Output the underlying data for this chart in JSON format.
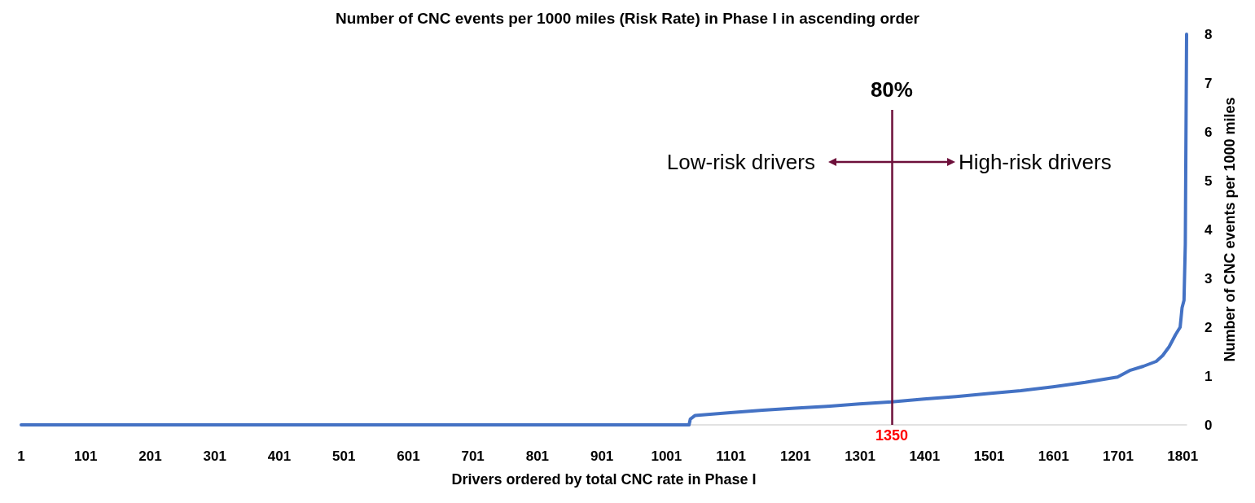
{
  "chart_data": {
    "type": "line",
    "title": "Number of CNC events per 1000 miles (Risk Rate) in Phase I in ascending order",
    "xlabel": "Drivers ordered by total CNC rate in Phase I",
    "ylabel": "Number of CNC events per 1000 miles",
    "x": [
      1,
      1036,
      1038,
      1045,
      1100,
      1150,
      1200,
      1250,
      1300,
      1350,
      1400,
      1450,
      1500,
      1550,
      1600,
      1650,
      1700,
      1720,
      1740,
      1760,
      1770,
      1780,
      1790,
      1797,
      1800,
      1803,
      1805,
      1807
    ],
    "series": [
      {
        "color": "#4472c4",
        "values": [
          0,
          0,
          0.12,
          0.19,
          0.25,
          0.3,
          0.34,
          0.38,
          0.43,
          0.47,
          0.53,
          0.58,
          0.64,
          0.7,
          0.78,
          0.87,
          0.98,
          1.12,
          1.2,
          1.3,
          1.42,
          1.6,
          1.85,
          2.0,
          2.4,
          2.55,
          3.7,
          8
        ]
      }
    ],
    "xlim": [
      1,
      1807
    ],
    "xticks": [
      1,
      101,
      201,
      301,
      401,
      501,
      601,
      701,
      801,
      901,
      1001,
      1101,
      1201,
      1301,
      1401,
      1501,
      1601,
      1701,
      1801
    ],
    "ylim": [
      0,
      8
    ],
    "yticks": [
      0,
      1,
      2,
      3,
      4,
      5,
      6,
      7,
      8
    ],
    "grid": false,
    "marker": "none",
    "line_style": "solid",
    "ref_lines": [
      {
        "axis": "x",
        "value": 1350,
        "label": "1350",
        "color": "#6d0f3a"
      }
    ],
    "annotations": [
      {
        "text": "80%",
        "x": 1350,
        "y": 6.45
      },
      "Low-risk drivers",
      "High-risk drivers"
    ]
  }
}
